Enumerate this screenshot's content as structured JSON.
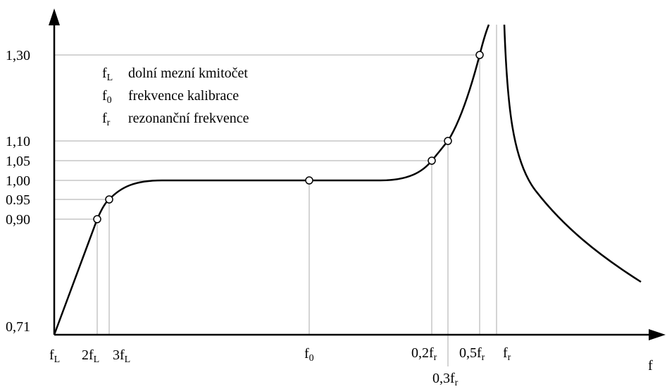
{
  "y_axis": {
    "labels": [
      "1,30",
      "1,10",
      "1,05",
      "1,00",
      "0.95",
      "0,90",
      "0,71"
    ]
  },
  "x_axis": {
    "title": "f",
    "labels": [
      {
        "main": "f",
        "sub": "L"
      },
      {
        "main": "2f",
        "sub": "L"
      },
      {
        "main": "3f",
        "sub": "L"
      },
      {
        "main": "f",
        "sub": "0"
      },
      {
        "main": "0,2f",
        "sub": "r"
      },
      {
        "main": "0,3f",
        "sub": "r"
      },
      {
        "main": "0,5f",
        "sub": "r"
      },
      {
        "main": "f",
        "sub": "r"
      }
    ]
  },
  "legend": [
    {
      "symbol": {
        "main": "f",
        "sub": "L"
      },
      "text": "dolní mezní kmitočet"
    },
    {
      "symbol": {
        "main": "f",
        "sub": "0"
      },
      "text": "frekvence kalibrace"
    },
    {
      "symbol": {
        "main": "f",
        "sub": "r"
      },
      "text": "rezonanční frekvence"
    }
  ]
}
